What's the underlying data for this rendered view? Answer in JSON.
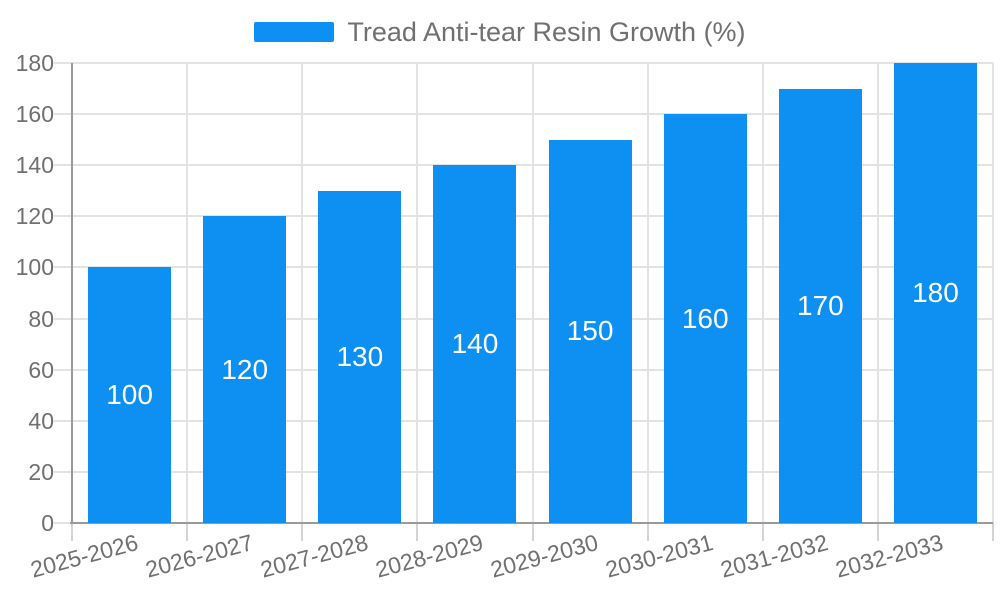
{
  "chart_data": {
    "type": "bar",
    "title": "Tread Anti-tear Resin Growth (%)",
    "categories": [
      "2025-2026",
      "2026-2027",
      "2027-2028",
      "2028-2029",
      "2029-2030",
      "2030-2031",
      "2031-2032",
      "2032-2033"
    ],
    "values": [
      100,
      120,
      130,
      140,
      150,
      160,
      170,
      180
    ],
    "series": [
      {
        "name": "Tread Anti-tear Resin Growth (%)",
        "values": [
          100,
          120,
          130,
          140,
          150,
          160,
          170,
          180
        ]
      }
    ],
    "xlabel": "",
    "ylabel": "",
    "ylim": [
      0,
      180
    ],
    "ytick_step": 20,
    "yticks": [
      0,
      20,
      40,
      60,
      80,
      100,
      120,
      140,
      160,
      180
    ],
    "grid": true,
    "legend_position": "top-center",
    "x_label_rotation_deg": -15,
    "bar_value_labels_visible": true
  },
  "colors": {
    "bar": "#0d90f2",
    "bar_value_text": "#ffffff",
    "axis_text": "#707070",
    "legend_text": "#707070",
    "gridline": "#e3e3e3",
    "axis_line": "#9a9a9a",
    "background": "#ffffff"
  },
  "legend": {
    "label": "Tread Anti-tear Resin Growth (%)"
  }
}
